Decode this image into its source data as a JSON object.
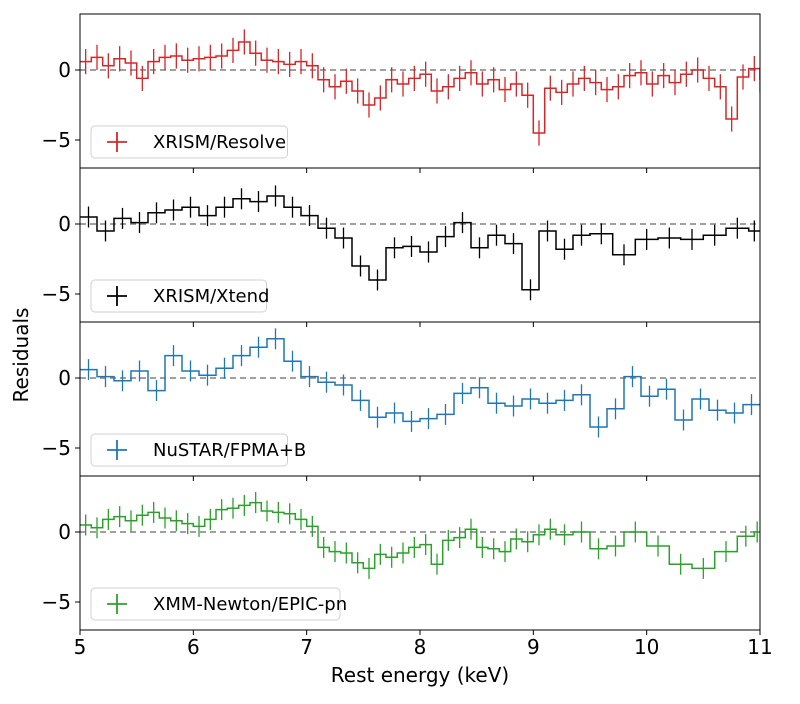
{
  "figure": {
    "ylabel": "Residuals",
    "xlabel": "Rest energy (keV)"
  },
  "chart_data": [
    {
      "type": "line",
      "panel": "Resolve",
      "legend": "XRISM/Resolve",
      "color": "#d62728",
      "style": "fine-binned residuals with error bars",
      "xlim": [
        5,
        11
      ],
      "ylim": [
        -7,
        4
      ],
      "yticks": [
        0,
        -5
      ],
      "reference_line": 0,
      "x": [
        5.0,
        5.1,
        5.2,
        5.3,
        5.4,
        5.5,
        5.6,
        5.7,
        5.8,
        5.9,
        6.0,
        6.1,
        6.2,
        6.3,
        6.4,
        6.5,
        6.6,
        6.7,
        6.8,
        6.9,
        7.0,
        7.1,
        7.2,
        7.3,
        7.4,
        7.5,
        7.6,
        7.7,
        7.8,
        7.9,
        8.0,
        8.1,
        8.2,
        8.3,
        8.4,
        8.5,
        8.6,
        8.7,
        8.8,
        8.9,
        9.0,
        9.1,
        9.2,
        9.3,
        9.4,
        9.5,
        9.6,
        9.7,
        9.8,
        9.9,
        10.0,
        10.1,
        10.2,
        10.3,
        10.4,
        10.5,
        10.6,
        10.7,
        10.8,
        10.9,
        11.0
      ],
      "values": [
        0.6,
        0.9,
        0.3,
        0.8,
        0.5,
        -0.6,
        0.6,
        0.9,
        1.0,
        0.7,
        0.8,
        0.9,
        1.0,
        1.4,
        2.0,
        1.2,
        0.7,
        0.6,
        0.4,
        0.6,
        0.3,
        -0.7,
        -1.2,
        -0.8,
        -1.5,
        -2.5,
        -2.0,
        -0.7,
        -1.0,
        -0.6,
        -0.3,
        -1.5,
        -1.2,
        -0.6,
        -0.2,
        -1.0,
        -0.7,
        -1.4,
        -1.0,
        -1.8,
        -4.5,
        -1.3,
        -1.6,
        -1.0,
        -0.6,
        -0.9,
        -1.4,
        -1.2,
        -0.4,
        -0.2,
        -1.0,
        -0.4,
        -0.9,
        -0.3,
        0.0,
        -0.6,
        -1.2,
        -3.5,
        -0.5,
        0.1,
        -0.7
      ]
    },
    {
      "type": "line",
      "panel": "Xtend",
      "legend": "XRISM/Xtend",
      "color": "#000000",
      "style": "binned step residuals with error bars",
      "xlim": [
        5,
        11
      ],
      "ylim": [
        -7,
        4
      ],
      "yticks": [
        0,
        -5
      ],
      "reference_line": 0,
      "x": [
        5.0,
        5.15,
        5.3,
        5.45,
        5.6,
        5.75,
        5.9,
        6.05,
        6.2,
        6.35,
        6.5,
        6.65,
        6.8,
        6.95,
        7.1,
        7.25,
        7.4,
        7.55,
        7.7,
        7.85,
        8.0,
        8.15,
        8.3,
        8.45,
        8.6,
        8.75,
        8.9,
        9.05,
        9.2,
        9.35,
        9.5,
        9.7,
        9.9,
        10.1,
        10.3,
        10.5,
        10.7,
        10.9
      ],
      "values": [
        0.5,
        -0.5,
        0.4,
        0.1,
        0.8,
        1.0,
        1.2,
        0.6,
        1.2,
        1.8,
        1.6,
        2.0,
        1.2,
        0.6,
        -0.3,
        -1.0,
        -3.0,
        -4.0,
        -1.7,
        -1.6,
        -2.0,
        -0.9,
        0.1,
        -1.7,
        -0.8,
        -1.4,
        -4.7,
        -0.5,
        -1.8,
        -0.8,
        -0.7,
        -2.2,
        -1.1,
        -1.0,
        -1.1,
        -0.8,
        -0.3,
        -0.5
      ]
    },
    {
      "type": "line",
      "panel": "NuSTAR",
      "legend": "NuSTAR/FPMA+B",
      "color": "#1f77b4",
      "style": "binned step residuals with error bars",
      "xlim": [
        5,
        11
      ],
      "ylim": [
        -7,
        4
      ],
      "yticks": [
        0,
        -5
      ],
      "reference_line": 0,
      "x": [
        5.0,
        5.15,
        5.3,
        5.45,
        5.6,
        5.75,
        5.9,
        6.05,
        6.2,
        6.35,
        6.5,
        6.65,
        6.8,
        6.95,
        7.1,
        7.25,
        7.4,
        7.55,
        7.7,
        7.85,
        8.0,
        8.15,
        8.3,
        8.45,
        8.6,
        8.75,
        8.9,
        9.05,
        9.2,
        9.35,
        9.5,
        9.65,
        9.8,
        9.95,
        10.1,
        10.25,
        10.4,
        10.55,
        10.7,
        10.85
      ],
      "values": [
        0.6,
        0.1,
        -0.2,
        0.5,
        -0.9,
        1.6,
        0.5,
        0.2,
        0.7,
        1.6,
        2.2,
        2.8,
        1.2,
        0.1,
        -0.3,
        -0.5,
        -1.6,
        -2.8,
        -2.5,
        -3.1,
        -2.9,
        -2.6,
        -1.1,
        -0.7,
        -1.8,
        -2.0,
        -1.5,
        -1.8,
        -1.6,
        -1.2,
        -3.5,
        -2.2,
        0.1,
        -1.3,
        -0.8,
        -3.0,
        -1.5,
        -2.3,
        -2.5,
        -1.9
      ]
    },
    {
      "type": "line",
      "panel": "XMM",
      "legend": "XMM-Newton/EPIC-pn",
      "color": "#2ca02c",
      "style": "binned step residuals with error bars",
      "xlim": [
        5,
        11
      ],
      "ylim": [
        -7,
        4
      ],
      "yticks": [
        0,
        -5
      ],
      "reference_line": 0,
      "x": [
        5.0,
        5.1,
        5.2,
        5.3,
        5.4,
        5.5,
        5.6,
        5.7,
        5.8,
        5.9,
        6.0,
        6.1,
        6.2,
        6.3,
        6.4,
        6.5,
        6.6,
        6.7,
        6.8,
        6.9,
        7.0,
        7.1,
        7.2,
        7.3,
        7.4,
        7.5,
        7.6,
        7.7,
        7.8,
        7.9,
        8.0,
        8.1,
        8.2,
        8.3,
        8.4,
        8.5,
        8.6,
        8.7,
        8.8,
        8.9,
        9.0,
        9.1,
        9.2,
        9.35,
        9.5,
        9.65,
        9.8,
        10.0,
        10.2,
        10.4,
        10.6,
        10.8,
        10.95
      ],
      "values": [
        0.5,
        0.3,
        0.9,
        1.1,
        0.8,
        1.2,
        1.4,
        1.0,
        0.8,
        0.6,
        0.4,
        0.9,
        1.6,
        1.7,
        1.9,
        2.1,
        1.5,
        1.4,
        1.3,
        0.9,
        0.4,
        -1.1,
        -1.4,
        -1.5,
        -2.2,
        -2.6,
        -1.6,
        -1.8,
        -1.5,
        -1.1,
        -0.9,
        -2.3,
        -0.6,
        -0.4,
        0.2,
        -1.1,
        -1.2,
        -1.4,
        -0.5,
        -0.7,
        -0.2,
        0.2,
        -0.2,
        0.0,
        -1.2,
        -1.0,
        0.0,
        -1.0,
        -2.3,
        -2.6,
        -1.4,
        -0.3,
        0.0
      ]
    }
  ]
}
